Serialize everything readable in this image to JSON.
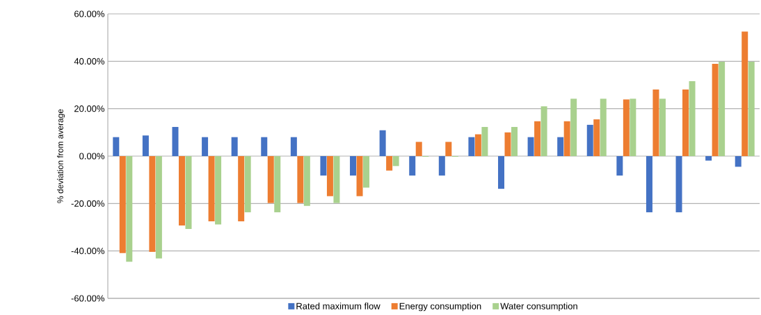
{
  "chart_data": {
    "type": "bar",
    "ylabel": "% deviation from average",
    "categories": [
      null,
      null,
      null,
      null,
      null,
      null,
      null,
      null,
      null,
      null,
      null,
      null,
      null,
      null,
      null,
      null,
      null,
      null,
      null,
      null,
      null,
      null
    ],
    "series": [
      {
        "name": "Rated maximum flow",
        "color": "#4472c4",
        "values": [
          8.0,
          8.7,
          12.3,
          8.0,
          8.0,
          8.0,
          8.0,
          -8.2,
          -8.2,
          10.9,
          -8.2,
          -8.2,
          8.0,
          -13.8,
          8.0,
          8.0,
          13.2,
          -8.2,
          -23.7,
          -23.7,
          -1.9,
          -4.5
        ]
      },
      {
        "name": "Energy consumption",
        "color": "#ed7d31",
        "values": [
          -40.9,
          -40.4,
          -29.3,
          -27.5,
          -27.5,
          -19.8,
          -19.8,
          -16.9,
          -16.9,
          -6.1,
          6.0,
          6.0,
          9.2,
          10.0,
          14.7,
          14.7,
          15.5,
          23.9,
          28.1,
          28.1,
          38.9,
          52.5
        ]
      },
      {
        "name": "Water consumption",
        "color": "#a9d18e",
        "values": [
          -44.6,
          -43.2,
          -30.7,
          -28.8,
          -23.7,
          -23.7,
          -21.0,
          -19.8,
          -13.3,
          -4.2,
          -0.3,
          -0.3,
          12.3,
          12.3,
          21.0,
          24.2,
          24.2,
          24.2,
          24.2,
          31.6,
          39.8,
          39.8
        ]
      }
    ],
    "ylim": [
      -60,
      60
    ],
    "yticks": [
      {
        "value": -60,
        "label": "-60.00%"
      },
      {
        "value": -40,
        "label": "-40.00%"
      },
      {
        "value": -20,
        "label": "-20.00%"
      },
      {
        "value": 0,
        "label": "0.00%"
      },
      {
        "value": 20,
        "label": "20.00%"
      },
      {
        "value": 40,
        "label": "40.00%"
      },
      {
        "value": 60,
        "label": "60.00%"
      }
    ],
    "grid": "y",
    "legend": "bottom",
    "tick_labels": "y"
  }
}
